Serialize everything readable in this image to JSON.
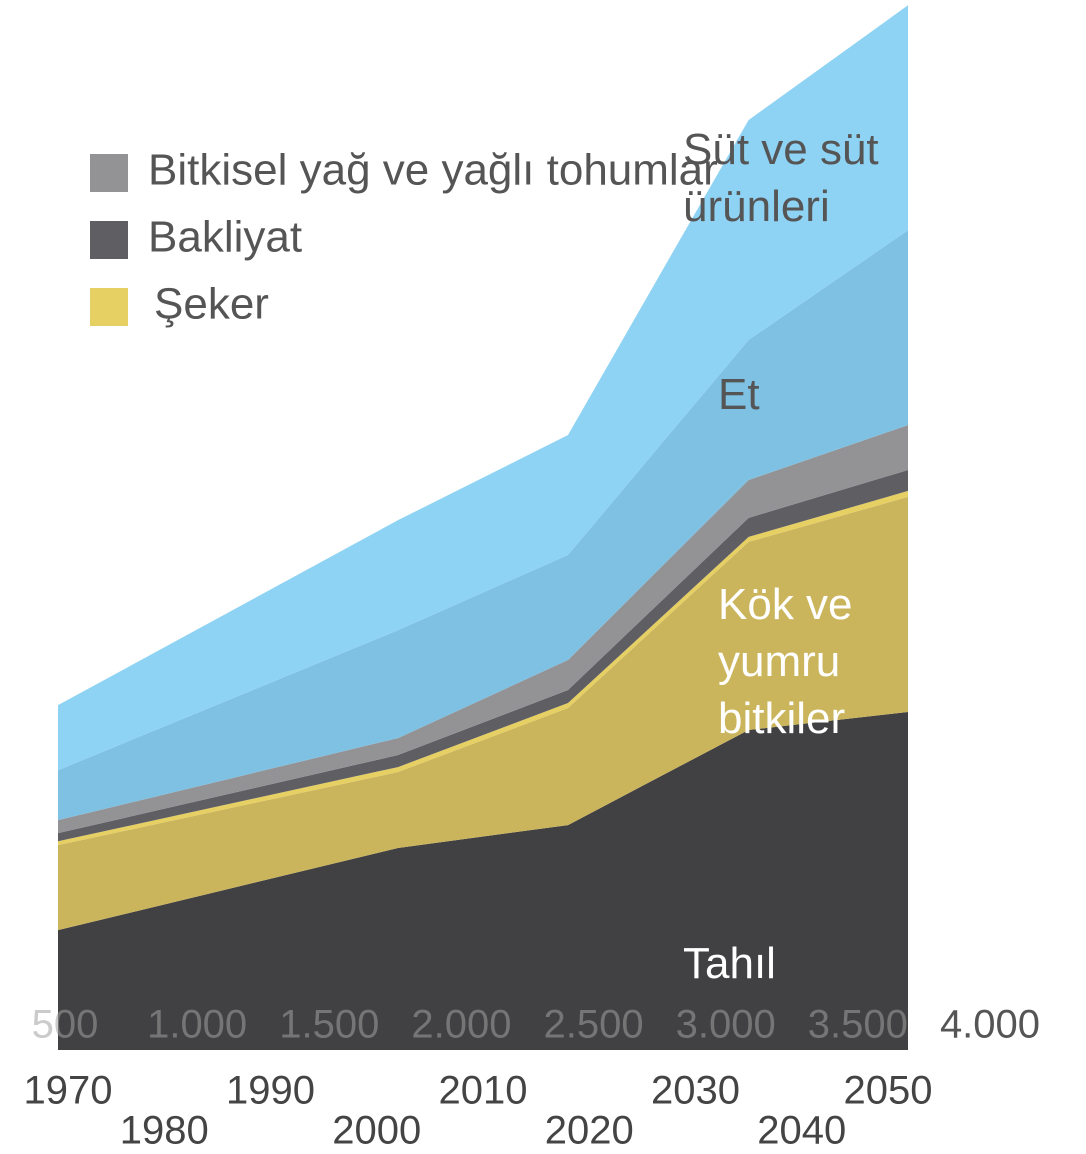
{
  "chart_data": {
    "type": "stacked_area",
    "x": [
      1970,
      2002,
      2018,
      2035,
      2050
    ],
    "xlim": [
      1970,
      2050
    ],
    "xticks": [
      1970,
      1980,
      1990,
      2000,
      2010,
      2020,
      2030,
      2040,
      2050
    ],
    "ylim": [
      0,
      4000
    ],
    "scale_lim": [
      500,
      4000
    ],
    "scale_ticks": [
      500,
      {
        "value": 1000,
        "label": "1.000"
      },
      {
        "value": 1500,
        "label": "1.500"
      },
      {
        "value": 2000,
        "label": "2.000"
      },
      {
        "value": 2500,
        "label": "2.500"
      },
      {
        "value": 3000,
        "label": "3.000"
      },
      {
        "value": 3500,
        "label": "3.500"
      },
      {
        "value": 4000,
        "label": "4.000"
      }
    ],
    "series": [
      {
        "name": "Tahıl",
        "color": "#414042",
        "values": [
          459,
          773,
          861,
          1225,
          1294
        ],
        "label_in_chart": true
      },
      {
        "name": "Kök ve yumru bitkiler",
        "color": "#cbb55c",
        "values": [
          325,
          291,
          448,
          720,
          823
        ],
        "label_in_chart": true
      },
      {
        "name": "Şeker",
        "color": "#e6cf63",
        "values": [
          15,
          19,
          19,
          19,
          23
        ],
        "label_in_chart": false
      },
      {
        "name": "Bakliyat",
        "color": "#5e5e63",
        "values": [
          31,
          46,
          50,
          73,
          80
        ],
        "label_in_chart": false
      },
      {
        "name": "Bitkisel yağ ve yağlı tohumlar",
        "color": "#939396",
        "values": [
          50,
          65,
          115,
          145,
          172
        ],
        "label_in_chart": false
      },
      {
        "name": "Et",
        "color": "#7fc1e3",
        "values": [
          191,
          413,
          402,
          536,
          746
        ],
        "label_in_chart": true
      },
      {
        "name": "Süt ve süt ürünleri",
        "color": "#8fd3f4",
        "values": [
          249,
          421,
          459,
          842,
          861
        ],
        "label_in_chart": true
      }
    ]
  }
}
